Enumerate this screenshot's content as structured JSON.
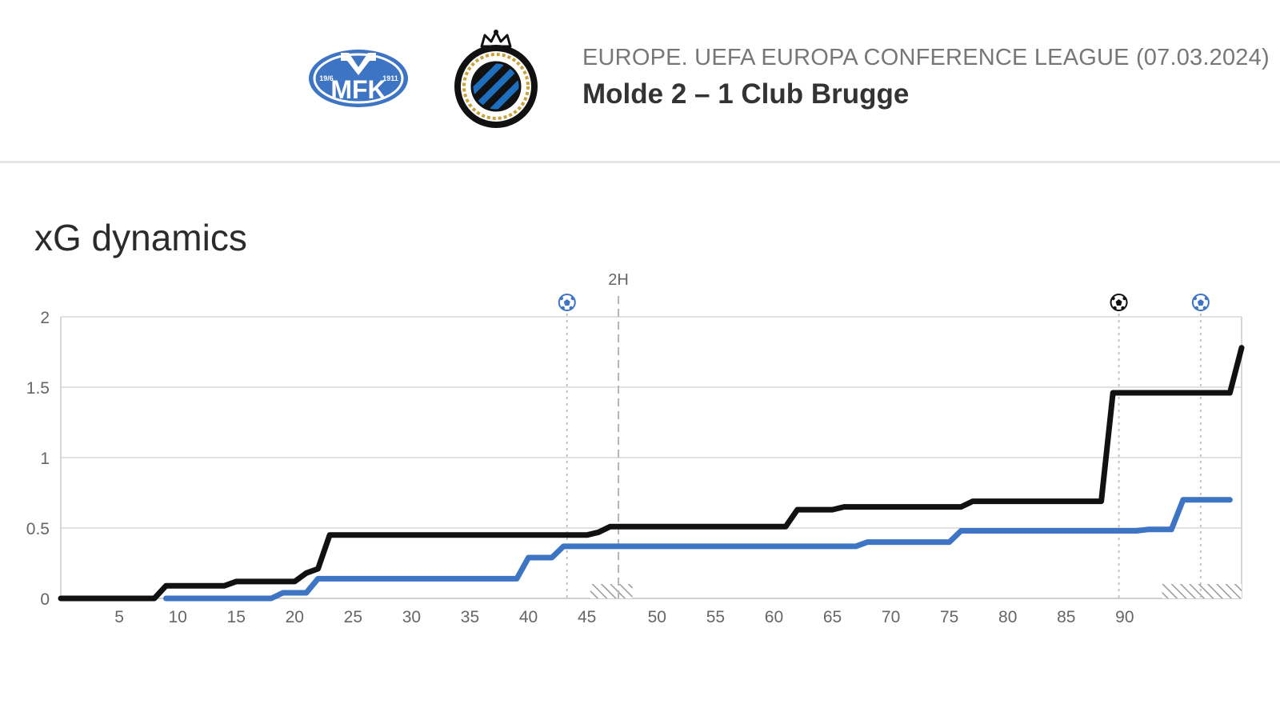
{
  "header": {
    "competition": "EUROPE. UEFA EUROPA CONFERENCE LEAGUE (07.03.2024)",
    "match": "Molde 2 – 1 Club Brugge",
    "home_logo": {
      "icon": "molde-fk-logo",
      "text": "MFK",
      "left_text": "19/6",
      "right_text": "1911",
      "color": "#3d74c4"
    },
    "away_logo": {
      "icon": "club-brugge-logo",
      "text": "CLUB BRUGGE KV",
      "colors": [
        "#000000",
        "#1f6fc0",
        "#c9a23a"
      ]
    }
  },
  "section": {
    "title": "xG dynamics"
  },
  "colors": {
    "molde": "#3d74c4",
    "brugge": "#111111",
    "grid": "#e2e2e2",
    "axis_text": "#666666"
  },
  "chart_data": {
    "type": "line",
    "title": "xG dynamics",
    "xlabel": "",
    "ylabel": "",
    "ylim": [
      0,
      2
    ],
    "yticks": [
      0,
      0.5,
      1,
      1.5,
      2
    ],
    "ytick_labels": [
      "0",
      "0.5",
      "1",
      "1.5",
      "2"
    ],
    "xticks_first_half": [
      5,
      10,
      15,
      20,
      25,
      30,
      35,
      40,
      45
    ],
    "xticks_second_half": [
      50,
      55,
      60,
      65,
      70,
      75,
      80,
      85,
      90
    ],
    "grid": true,
    "halftime_label": "2H",
    "series": [
      {
        "team": "Club Brugge",
        "color": "#111111",
        "points": [
          [
            0,
            0
          ],
          [
            8,
            0
          ],
          [
            9,
            0.09
          ],
          [
            14,
            0.09
          ],
          [
            15,
            0.12
          ],
          [
            20,
            0.12
          ],
          [
            21,
            0.18
          ],
          [
            22,
            0.21
          ],
          [
            23,
            0.45
          ],
          [
            45,
            0.45
          ],
          [
            46,
            0.47
          ],
          [
            47,
            0.51
          ],
          [
            62,
            0.51
          ],
          [
            63,
            0.63
          ],
          [
            66,
            0.63
          ],
          [
            67,
            0.65
          ],
          [
            77,
            0.65
          ],
          [
            78,
            0.69
          ],
          [
            89,
            0.69
          ],
          [
            90,
            1.46
          ],
          [
            100,
            1.46
          ],
          [
            101,
            1.78
          ]
        ]
      },
      {
        "team": "Molde",
        "color": "#3d74c4",
        "points": [
          [
            9,
            0
          ],
          [
            18,
            0
          ],
          [
            19,
            0.04
          ],
          [
            21,
            0.04
          ],
          [
            22,
            0.14
          ],
          [
            39,
            0.14
          ],
          [
            40,
            0.29
          ],
          [
            42,
            0.29
          ],
          [
            43,
            0.37
          ],
          [
            68,
            0.37
          ],
          [
            69,
            0.4
          ],
          [
            76,
            0.4
          ],
          [
            77,
            0.48
          ],
          [
            92,
            0.48
          ],
          [
            93,
            0.49
          ],
          [
            95,
            0.49
          ],
          [
            96,
            0.7
          ],
          [
            100,
            0.7
          ]
        ]
      }
    ],
    "goals": [
      {
        "minute": 42,
        "team": "Molde",
        "icon": "football-icon",
        "color": "#3d74c4"
      },
      {
        "minute": 85,
        "team": "Club Brugge",
        "icon": "football-icon",
        "color": "#111111"
      },
      {
        "minute": 92,
        "team": "Molde",
        "icon": "football-icon",
        "color": "#3d74c4"
      }
    ],
    "stoppage_time": [
      {
        "half": 1,
        "from": 45,
        "to": 46
      },
      {
        "half": 2,
        "from": 90,
        "to": 94
      }
    ]
  }
}
